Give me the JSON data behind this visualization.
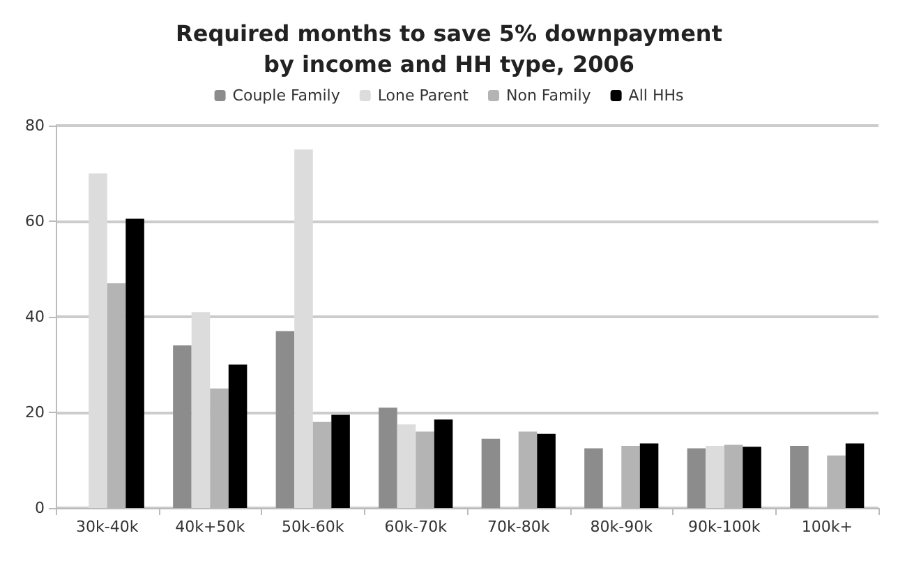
{
  "chart_data": {
    "type": "bar",
    "title": "Required months to save 5% downpayment\nby income and HH type, 2006",
    "categories": [
      "30k-40k",
      "40k+50k",
      "50k-60k",
      "60k-70k",
      "70k-80k",
      "80k-90k",
      "90k-100k",
      "100k+"
    ],
    "series": [
      {
        "name": "Couple Family",
        "color": "#8c8c8c",
        "values": [
          null,
          34,
          37,
          21,
          14.5,
          12.5,
          12.5,
          13
        ]
      },
      {
        "name": "Lone Parent",
        "color": "#dcdcdc",
        "values": [
          70,
          41,
          75,
          17.5,
          null,
          null,
          13,
          null
        ]
      },
      {
        "name": "Non Family",
        "color": "#b4b4b4",
        "values": [
          47,
          25,
          18,
          16,
          16,
          13,
          13.2,
          11
        ]
      },
      {
        "name": "All HHs",
        "color": "#000000",
        "values": [
          60.5,
          30,
          19.5,
          18.5,
          15.5,
          13.5,
          12.8,
          13.5
        ]
      }
    ],
    "ylim": [
      0,
      80
    ],
    "yticks": [
      0,
      20,
      40,
      60,
      80
    ],
    "grid": "y",
    "legend": "top"
  }
}
